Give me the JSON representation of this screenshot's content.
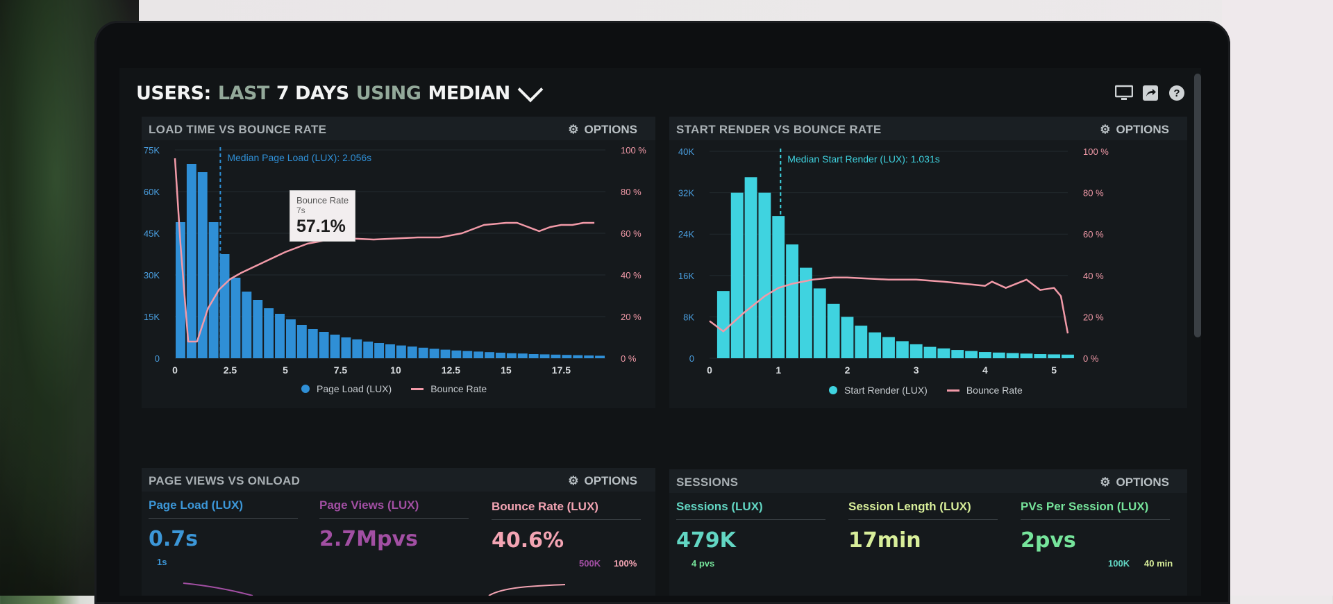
{
  "header": {
    "part1": "USERS:",
    "part2": "LAST",
    "part3": "7 DAYS",
    "part4": "USING",
    "part5": "MEDIAN",
    "icons": [
      "monitor-icon",
      "share-icon",
      "help-icon"
    ]
  },
  "panels": {
    "load": {
      "title": "LOAD TIME VS BOUNCE RATE",
      "options": "OPTIONS",
      "median_label": "Median Page Load (LUX): 2.056s",
      "tooltip": {
        "label": "Bounce Rate",
        "sub": "7s",
        "value": "57.1%"
      },
      "legend": {
        "bars": "Page Load (LUX)",
        "line": "Bounce Rate"
      }
    },
    "render": {
      "title": "START RENDER VS BOUNCE RATE",
      "options": "OPTIONS",
      "median_label": "Median Start Render (LUX): 1.031s",
      "legend": {
        "bars": "Start Render (LUX)",
        "line": "Bounce Rate"
      }
    },
    "pageviews": {
      "title": "PAGE VIEWS VS ONLOAD",
      "options": "OPTIONS",
      "stats": [
        {
          "label": "Page Load (LUX)",
          "value": "0.7s",
          "color": "#3c97d8"
        },
        {
          "label": "Page Views (LUX)",
          "value": "2.7Mpvs",
          "color": "#a24fa3"
        },
        {
          "label": "Bounce Rate (LUX)",
          "value": "40.6%",
          "color": "#f3a4b3"
        }
      ],
      "small_left": "1s",
      "small_right_1": "500K",
      "small_right_2": "100%"
    },
    "sessions": {
      "title": "SESSIONS",
      "options": "OPTIONS",
      "stats": [
        {
          "label": "Sessions (LUX)",
          "value": "479K",
          "color": "#62d6c3"
        },
        {
          "label": "Session Length (LUX)",
          "value": "17min",
          "color": "#d8ee9a"
        },
        {
          "label": "PVs Per Session (LUX)",
          "value": "2pvs",
          "color": "#76e49b"
        }
      ],
      "small_left": "4 pvs",
      "small_right_1": "100K",
      "small_right_2": "40 min"
    }
  },
  "chart_data": [
    {
      "type": "bar",
      "x_unit": "seconds",
      "xlim": [
        0,
        19.5
      ],
      "x_ticks": [
        "0",
        "2.5",
        "5",
        "7.5",
        "10",
        "12.5",
        "15",
        "17.5"
      ],
      "y_ticks_left": [
        "0",
        "15K",
        "30K",
        "45K",
        "60K",
        "75K"
      ],
      "y_ticks_right": [
        "0 %",
        "20 %",
        "40 %",
        "60 %",
        "80 %",
        "100 %"
      ],
      "ylim_left": [
        0,
        75000
      ],
      "ylim_right": [
        0,
        100
      ],
      "median": 2.056,
      "series": [
        {
          "name": "Page Load (LUX)",
          "bar_width": 0.5,
          "x": [
            0,
            0.5,
            1,
            1.5,
            2,
            2.5,
            3,
            3.5,
            4,
            4.5,
            5,
            5.5,
            6,
            6.5,
            7,
            7.5,
            8,
            8.5,
            9,
            9.5,
            10,
            10.5,
            11,
            11.5,
            12,
            12.5,
            13,
            13.5,
            14,
            14.5,
            15,
            15.5,
            16,
            16.5,
            17,
            17.5,
            18,
            18.5,
            19
          ],
          "values": [
            49000,
            70000,
            67000,
            49000,
            37500,
            29000,
            24000,
            21000,
            18000,
            16000,
            14000,
            12000,
            10500,
            9500,
            8500,
            7500,
            6800,
            6000,
            5500,
            5000,
            4600,
            4200,
            3800,
            3400,
            3100,
            2800,
            2600,
            2400,
            2200,
            2000,
            1800,
            1700,
            1500,
            1400,
            1300,
            1200,
            1100,
            1000,
            900
          ]
        },
        {
          "name": "Bounce Rate",
          "x": [
            0,
            0.25,
            0.6,
            1,
            1.5,
            2,
            2.5,
            3,
            4,
            5,
            6,
            7,
            8,
            9,
            10,
            11,
            12,
            13,
            14,
            15,
            15.5,
            16,
            16.5,
            17,
            17.5,
            18,
            18.5,
            19
          ],
          "values": [
            96,
            55,
            8,
            8,
            24,
            33,
            38,
            41,
            46,
            51,
            55,
            57,
            57.5,
            57,
            57.5,
            58,
            58,
            60,
            64,
            65,
            65,
            63,
            61,
            63,
            64,
            64,
            65,
            65
          ]
        }
      ]
    },
    {
      "type": "bar",
      "x_unit": "seconds",
      "xlim": [
        0,
        5.2
      ],
      "x_ticks": [
        "0",
        "1",
        "2",
        "3",
        "4",
        "5"
      ],
      "y_ticks_left": [
        "0",
        "8K",
        "16K",
        "24K",
        "32K",
        "40K"
      ],
      "y_ticks_right": [
        "0 %",
        "20 %",
        "40 %",
        "60 %",
        "80 %",
        "100 %"
      ],
      "ylim_left": [
        0,
        40000
      ],
      "ylim_right": [
        0,
        100
      ],
      "median": 1.031,
      "series": [
        {
          "name": "Start Render (LUX)",
          "bar_width": 0.2,
          "x": [
            0.1,
            0.3,
            0.5,
            0.7,
            0.9,
            1.1,
            1.3,
            1.5,
            1.7,
            1.9,
            2.1,
            2.3,
            2.5,
            2.7,
            2.9,
            3.1,
            3.3,
            3.5,
            3.7,
            3.9,
            4.1,
            4.3,
            4.5,
            4.7,
            4.9,
            5.1
          ],
          "values": [
            13000,
            32000,
            35000,
            32000,
            27500,
            22000,
            17500,
            13500,
            10500,
            8000,
            6300,
            5000,
            4100,
            3300,
            2700,
            2200,
            1900,
            1600,
            1400,
            1200,
            1100,
            1000,
            900,
            800,
            750,
            700
          ]
        },
        {
          "name": "Bounce Rate",
          "x": [
            0,
            0.2,
            0.5,
            0.8,
            1.0,
            1.2,
            1.5,
            1.8,
            2.0,
            2.3,
            2.6,
            3.0,
            3.4,
            3.7,
            4.0,
            4.1,
            4.2,
            4.3,
            4.6,
            4.8,
            5.0,
            5.1,
            5.2
          ],
          "values": [
            18,
            13,
            22,
            30,
            34,
            36,
            38,
            39,
            39,
            38.5,
            38,
            38,
            37,
            36,
            35,
            37,
            35.5,
            34,
            38,
            33,
            34,
            30,
            12
          ]
        }
      ]
    }
  ]
}
